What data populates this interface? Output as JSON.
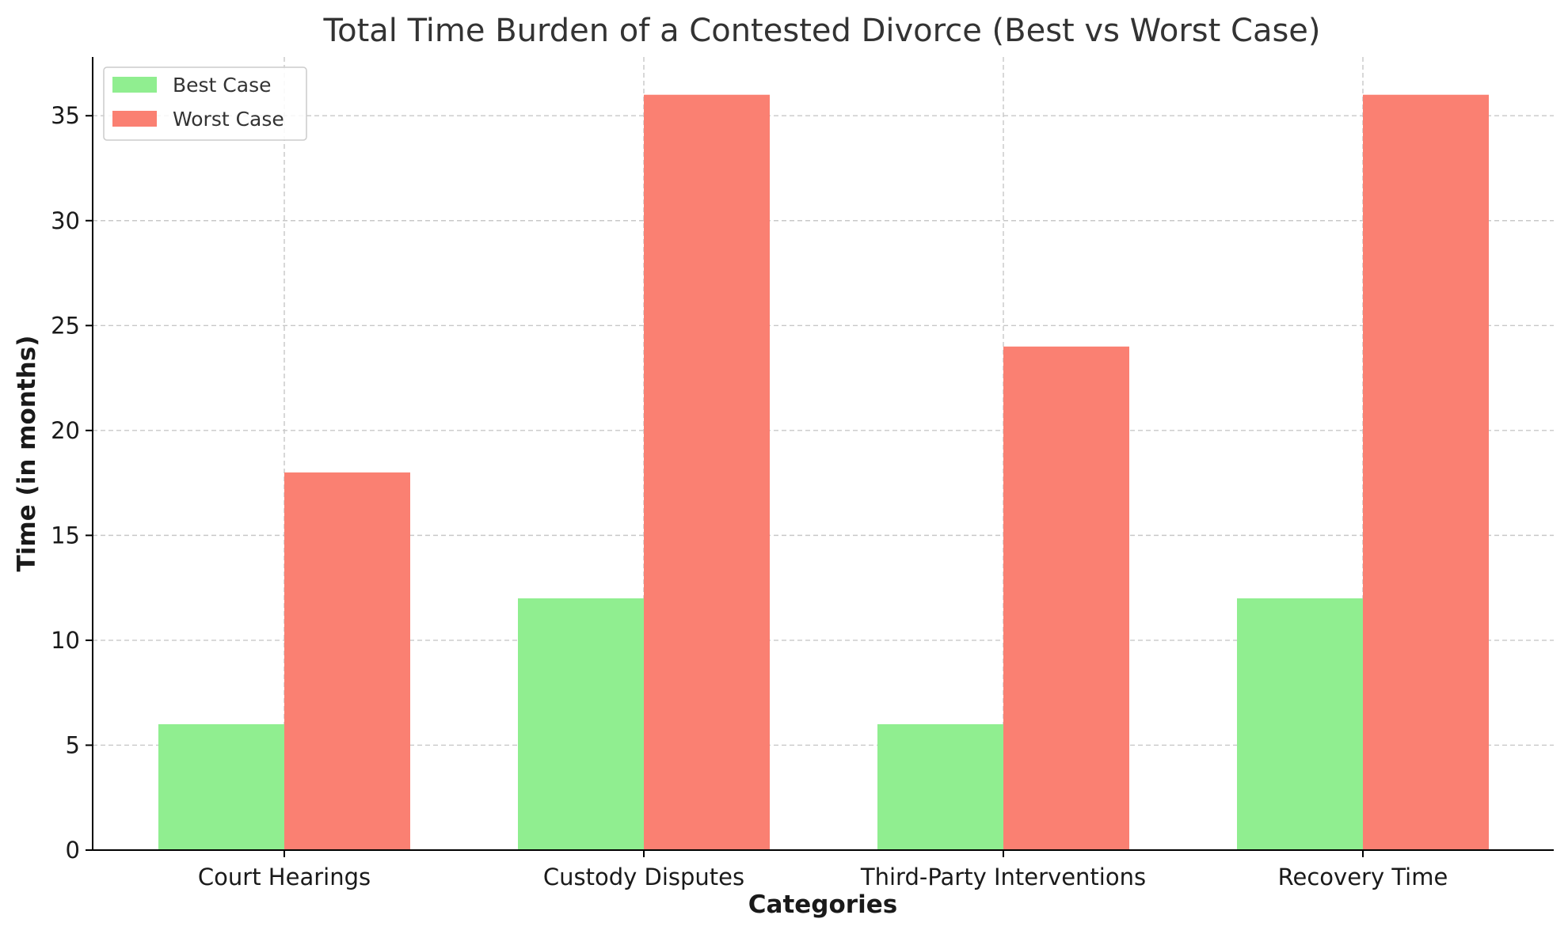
{
  "chart_data": {
    "type": "bar",
    "title": "Total Time Burden of a Contested Divorce (Best vs Worst Case)",
    "xlabel": "Categories",
    "ylabel": "Time (in months)",
    "categories": [
      "Court Hearings",
      "Custody Disputes",
      "Third-Party Interventions",
      "Recovery Time"
    ],
    "series": [
      {
        "name": "Best Case",
        "values": [
          6,
          12,
          6,
          12
        ],
        "color": "#90ee90"
      },
      {
        "name": "Worst Case",
        "values": [
          18,
          36,
          24,
          36
        ],
        "color": "#fa8072"
      }
    ],
    "ylim": [
      0,
      37.8
    ],
    "yticks": [
      0,
      5,
      10,
      15,
      20,
      25,
      30,
      35
    ],
    "grid": true,
    "legend_position": "top-left"
  }
}
